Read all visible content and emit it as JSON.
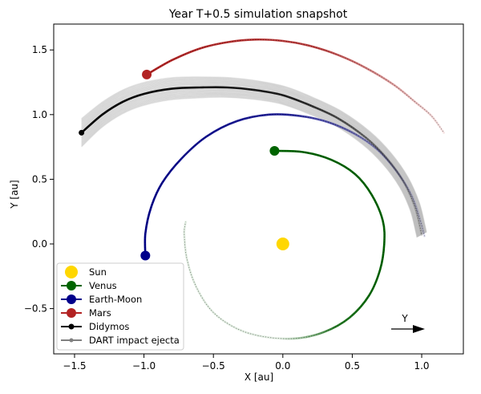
{
  "chart_data": {
    "type": "line",
    "title": "Year T+0.5 simulation snapshot",
    "xlabel": "X [au]",
    "ylabel": "Y [au]",
    "xlim": [
      -1.65,
      1.3
    ],
    "ylim": [
      -0.85,
      1.7
    ],
    "xticks": [
      -1.5,
      -1.0,
      -0.5,
      0.0,
      0.5,
      1.0
    ],
    "yticks": [
      -0.5,
      0.0,
      0.5,
      1.0,
      1.5
    ],
    "xtick_labels": [
      "−1.5",
      "−1.0",
      "−0.5",
      "0.0",
      "0.5",
      "1.0"
    ],
    "ytick_labels": [
      "−0.5",
      "0.0",
      "0.5",
      "1.0",
      "1.5"
    ],
    "grid": false,
    "legend_position": "lower-left",
    "direction_indicator": {
      "label": "Y"
    },
    "series": [
      {
        "name": "Sun",
        "color": "#FFD700",
        "marker": "large-circle",
        "position": [
          0.0,
          0.0
        ],
        "trail": []
      },
      {
        "name": "Venus",
        "color": "#006400",
        "marker": "circle",
        "position": [
          -0.06,
          0.72
        ],
        "trail": [
          [
            -0.06,
            0.72
          ],
          [
            0.15,
            0.71
          ],
          [
            0.35,
            0.65
          ],
          [
            0.52,
            0.54
          ],
          [
            0.64,
            0.38
          ],
          [
            0.72,
            0.18
          ],
          [
            0.73,
            0.0
          ],
          [
            0.7,
            -0.2
          ],
          [
            0.62,
            -0.4
          ],
          [
            0.48,
            -0.57
          ],
          [
            0.3,
            -0.68
          ],
          [
            0.1,
            -0.73
          ],
          [
            -0.12,
            -0.72
          ],
          [
            -0.32,
            -0.66
          ],
          [
            -0.5,
            -0.53
          ],
          [
            -0.62,
            -0.34
          ],
          [
            -0.69,
            -0.12
          ],
          [
            -0.71,
            0.08
          ],
          [
            -0.7,
            0.17
          ]
        ]
      },
      {
        "name": "Earth-Moon",
        "color": "#00008B",
        "marker": "circle",
        "position": [
          -0.99,
          -0.09
        ],
        "trail": [
          [
            -0.99,
            -0.09
          ],
          [
            -0.99,
            0.08
          ],
          [
            -0.95,
            0.28
          ],
          [
            -0.87,
            0.47
          ],
          [
            -0.73,
            0.66
          ],
          [
            -0.55,
            0.83
          ],
          [
            -0.33,
            0.95
          ],
          [
            -0.1,
            1.0
          ],
          [
            0.12,
            0.99
          ],
          [
            0.33,
            0.94
          ],
          [
            0.52,
            0.85
          ],
          [
            0.68,
            0.73
          ],
          [
            0.82,
            0.56
          ],
          [
            0.93,
            0.37
          ],
          [
            0.99,
            0.18
          ],
          [
            1.02,
            0.06
          ]
        ]
      },
      {
        "name": "Mars",
        "color": "#B22222",
        "marker": "circle",
        "position": [
          -0.98,
          1.31
        ],
        "trail": [
          [
            -0.98,
            1.31
          ],
          [
            -0.8,
            1.42
          ],
          [
            -0.6,
            1.51
          ],
          [
            -0.4,
            1.56
          ],
          [
            -0.2,
            1.58
          ],
          [
            0.0,
            1.57
          ],
          [
            0.2,
            1.53
          ],
          [
            0.4,
            1.46
          ],
          [
            0.6,
            1.36
          ],
          [
            0.8,
            1.23
          ],
          [
            0.95,
            1.1
          ],
          [
            1.07,
            0.99
          ],
          [
            1.16,
            0.86
          ]
        ]
      },
      {
        "name": "Didymos",
        "color": "#000000",
        "marker": "circle",
        "position": [
          -1.45,
          0.86
        ],
        "trail": [
          [
            -1.45,
            0.86
          ],
          [
            -1.3,
            1.0
          ],
          [
            -1.15,
            1.1
          ],
          [
            -1.0,
            1.16
          ],
          [
            -0.8,
            1.2
          ],
          [
            -0.6,
            1.21
          ],
          [
            -0.4,
            1.21
          ],
          [
            -0.2,
            1.19
          ],
          [
            0.0,
            1.15
          ],
          [
            0.2,
            1.07
          ],
          [
            0.4,
            0.97
          ],
          [
            0.6,
            0.82
          ],
          [
            0.75,
            0.66
          ],
          [
            0.87,
            0.48
          ],
          [
            0.95,
            0.29
          ],
          [
            0.99,
            0.12
          ],
          [
            1.0,
            0.07
          ]
        ]
      },
      {
        "name": "DART impact ejecta",
        "color": "#808080",
        "marker": "small-dot"
      }
    ]
  }
}
